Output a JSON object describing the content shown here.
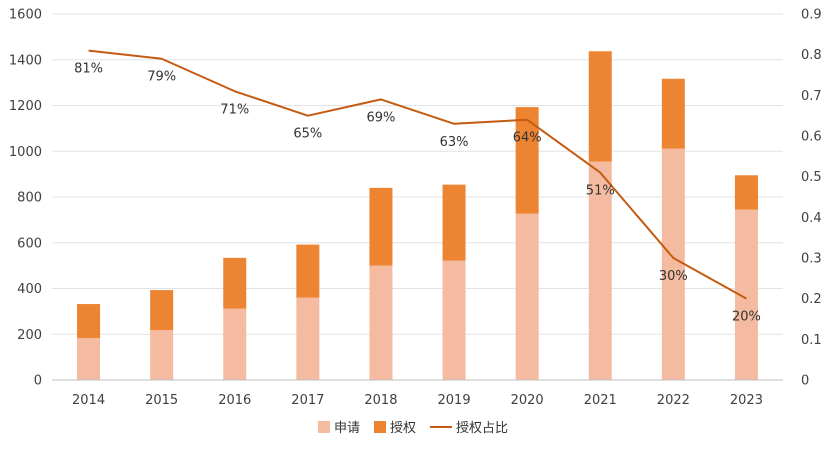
{
  "chart_data": {
    "type": "bar",
    "stacked": true,
    "categories": [
      "2014",
      "2015",
      "2016",
      "2017",
      "2018",
      "2019",
      "2020",
      "2021",
      "2022",
      "2023"
    ],
    "series": [
      {
        "name": "申请",
        "type": "bar",
        "axis": "left",
        "color": "#F4BBA1",
        "values": [
          183,
          218,
          312,
          360,
          500,
          522,
          727,
          955,
          1012,
          745
        ]
      },
      {
        "name": "授权",
        "type": "bar",
        "axis": "left",
        "color": "#ED8431",
        "values": [
          149,
          175,
          222,
          232,
          340,
          332,
          466,
          482,
          305,
          150
        ]
      },
      {
        "name": "授权占比",
        "type": "line",
        "axis": "right",
        "color": "#C55A11",
        "values": [
          0.81,
          0.79,
          0.71,
          0.65,
          0.69,
          0.63,
          0.64,
          0.51,
          0.3,
          0.2
        ],
        "labels": [
          "81%",
          "79%",
          "71%",
          "65%",
          "69%",
          "63%",
          "64%",
          "51%",
          "30%",
          "20%"
        ]
      }
    ],
    "y_left": {
      "min": 0,
      "max": 1600,
      "ticks": [
        "0",
        "200",
        "400",
        "600",
        "800",
        "1000",
        "1200",
        "1400",
        "1600"
      ]
    },
    "y_right": {
      "min": 0,
      "max": 0.9,
      "ticks": [
        "0",
        "0.1",
        "0.2",
        "0.3",
        "0.4",
        "0.5",
        "0.6",
        "0.7",
        "0.8",
        "0.9"
      ]
    },
    "grid": true,
    "legend_position": "bottom"
  }
}
